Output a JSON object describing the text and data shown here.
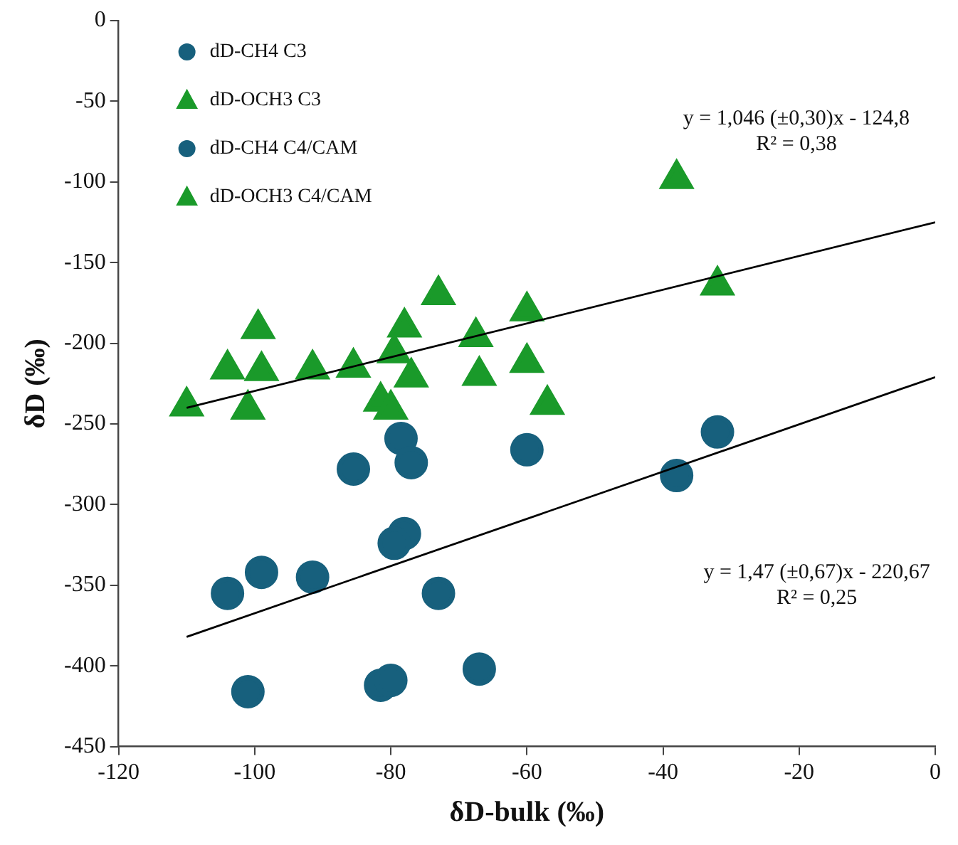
{
  "chart_data": {
    "type": "scatter",
    "xlabel": "δD-bulk (‰)",
    "ylabel": "δD (‰)",
    "xlim": [
      -120,
      0
    ],
    "xticks": [
      -120,
      -100,
      -80,
      -60,
      -40,
      -20,
      0
    ],
    "ylim": [
      -450,
      0
    ],
    "yticks": [
      -450,
      -400,
      -350,
      -300,
      -250,
      -200,
      -150,
      -100,
      -50,
      0
    ],
    "grid": false,
    "legend": "top left",
    "series": [
      {
        "name": "dD-CH4 C3",
        "color": "#17607d",
        "marker": "circle",
        "x": [
          -104,
          -99,
          -73,
          -101,
          -81.5,
          -80,
          -67
        ],
        "values": [
          -355,
          -342,
          -355,
          -416,
          -412,
          -409,
          -402
        ]
      },
      {
        "name": "dD-OCH3 C3",
        "color": "#1a9a2a",
        "marker": "triangle",
        "x": [
          -110,
          -99.5,
          -104,
          -99,
          -101,
          -73,
          -60,
          -67,
          -81.5,
          -80,
          -57
        ],
        "values": [
          -239,
          -191,
          -216,
          -217,
          -241,
          -170,
          -180,
          -220,
          -236,
          -241,
          -238
        ]
      },
      {
        "name": "dD-CH4 C4/CAM",
        "color": "#17607d",
        "marker": "circle",
        "x": [
          -85.5,
          -78.5,
          -77,
          -60,
          -78,
          -79.5,
          -91.5,
          -32,
          -38
        ],
        "values": [
          -278,
          -259,
          -274,
          -266,
          -318,
          -324,
          -345,
          -255,
          -282
        ]
      },
      {
        "name": "dD-OCH3 C4/CAM",
        "color": "#1a9a2a",
        "marker": "triangle",
        "x": [
          -91.5,
          -85.5,
          -78,
          -79.5,
          -77,
          -67.5,
          -60,
          -38,
          -32
        ],
        "values": [
          -216,
          -215,
          -190,
          -206,
          -221,
          -196,
          -212,
          -98,
          -164
        ]
      },
      {
        "type": "line",
        "color": "#000000",
        "marker": "none",
        "x": [
          -110,
          0
        ],
        "values": [
          -240,
          -125
        ]
      },
      {
        "type": "line",
        "color": "#000000",
        "marker": "none",
        "x": [
          -110,
          0
        ],
        "values": [
          -382,
          -221
        ]
      }
    ],
    "annotations": [
      "y = 1,046 (±0,30)x - 124,8",
      "R² = 0,38",
      "y = 1,47 (±0,67)x - 220,67",
      "R² = 0,25"
    ]
  }
}
